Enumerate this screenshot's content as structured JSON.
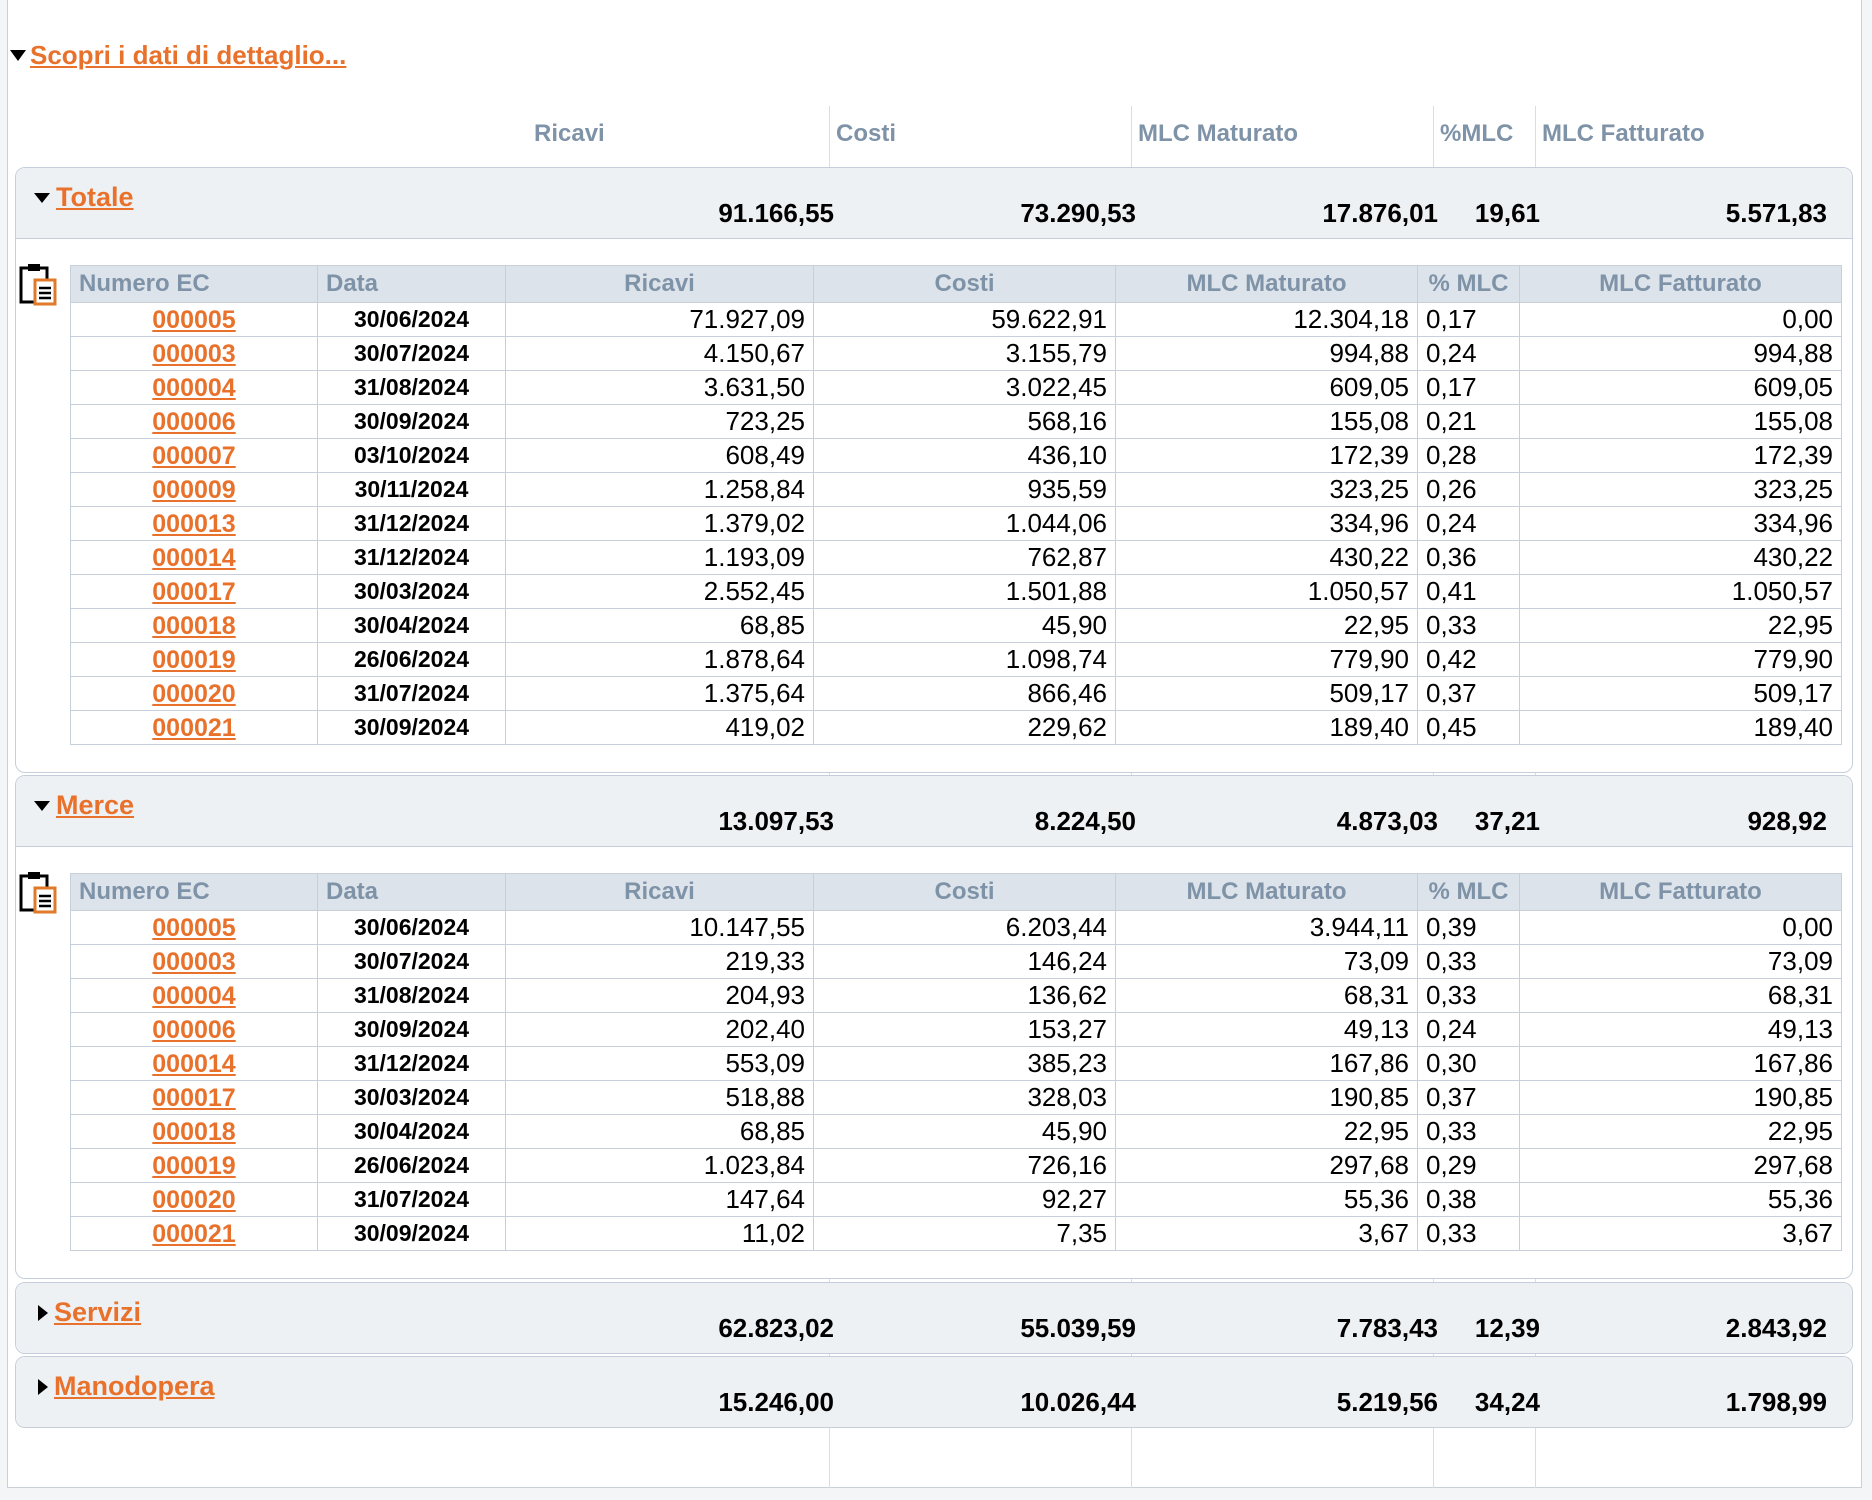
{
  "scopri_label": "Scopri i dati di dettaglio...",
  "columns": {
    "ricavi": "Ricavi",
    "costi": "Costi",
    "mlc_maturato": "MLC Maturato",
    "pct_mlc": "%MLC",
    "mlc_fatturato": "MLC Fatturato"
  },
  "detail_columns": {
    "numero_ec": "Numero EC",
    "data": "Data",
    "ricavi": "Ricavi",
    "costi": "Costi",
    "mlc_maturato": "MLC Maturato",
    "pct_mlc": "% MLC",
    "mlc_fatturato": "MLC Fatturato"
  },
  "sections": {
    "totale": {
      "title": "Totale",
      "expanded": true,
      "ricavi": "91.166,55",
      "costi": "73.290,53",
      "mlc_maturato": "17.876,01",
      "pct_mlc": "19,61",
      "mlc_fatturato": "5.571,83",
      "rows": [
        {
          "ec": "000005",
          "data": "30/06/2024",
          "ricavi": "71.927,09",
          "costi": "59.622,91",
          "mlc_maturato": "12.304,18",
          "pct": "0,17",
          "mlc_fatturato": "0,00"
        },
        {
          "ec": "000003",
          "data": "30/07/2024",
          "ricavi": "4.150,67",
          "costi": "3.155,79",
          "mlc_maturato": "994,88",
          "pct": "0,24",
          "mlc_fatturato": "994,88"
        },
        {
          "ec": "000004",
          "data": "31/08/2024",
          "ricavi": "3.631,50",
          "costi": "3.022,45",
          "mlc_maturato": "609,05",
          "pct": "0,17",
          "mlc_fatturato": "609,05"
        },
        {
          "ec": "000006",
          "data": "30/09/2024",
          "ricavi": "723,25",
          "costi": "568,16",
          "mlc_maturato": "155,08",
          "pct": "0,21",
          "mlc_fatturato": "155,08"
        },
        {
          "ec": "000007",
          "data": "03/10/2024",
          "ricavi": "608,49",
          "costi": "436,10",
          "mlc_maturato": "172,39",
          "pct": "0,28",
          "mlc_fatturato": "172,39"
        },
        {
          "ec": "000009",
          "data": "30/11/2024",
          "ricavi": "1.258,84",
          "costi": "935,59",
          "mlc_maturato": "323,25",
          "pct": "0,26",
          "mlc_fatturato": "323,25"
        },
        {
          "ec": "000013",
          "data": "31/12/2024",
          "ricavi": "1.379,02",
          "costi": "1.044,06",
          "mlc_maturato": "334,96",
          "pct": "0,24",
          "mlc_fatturato": "334,96"
        },
        {
          "ec": "000014",
          "data": "31/12/2024",
          "ricavi": "1.193,09",
          "costi": "762,87",
          "mlc_maturato": "430,22",
          "pct": "0,36",
          "mlc_fatturato": "430,22"
        },
        {
          "ec": "000017",
          "data": "30/03/2024",
          "ricavi": "2.552,45",
          "costi": "1.501,88",
          "mlc_maturato": "1.050,57",
          "pct": "0,41",
          "mlc_fatturato": "1.050,57"
        },
        {
          "ec": "000018",
          "data": "30/04/2024",
          "ricavi": "68,85",
          "costi": "45,90",
          "mlc_maturato": "22,95",
          "pct": "0,33",
          "mlc_fatturato": "22,95"
        },
        {
          "ec": "000019",
          "data": "26/06/2024",
          "ricavi": "1.878,64",
          "costi": "1.098,74",
          "mlc_maturato": "779,90",
          "pct": "0,42",
          "mlc_fatturato": "779,90"
        },
        {
          "ec": "000020",
          "data": "31/07/2024",
          "ricavi": "1.375,64",
          "costi": "866,46",
          "mlc_maturato": "509,17",
          "pct": "0,37",
          "mlc_fatturato": "509,17"
        },
        {
          "ec": "000021",
          "data": "30/09/2024",
          "ricavi": "419,02",
          "costi": "229,62",
          "mlc_maturato": "189,40",
          "pct": "0,45",
          "mlc_fatturato": "189,40"
        }
      ]
    },
    "merce": {
      "title": "Merce",
      "expanded": true,
      "ricavi": "13.097,53",
      "costi": "8.224,50",
      "mlc_maturato": "4.873,03",
      "pct_mlc": "37,21",
      "mlc_fatturato": "928,92",
      "rows": [
        {
          "ec": "000005",
          "data": "30/06/2024",
          "ricavi": "10.147,55",
          "costi": "6.203,44",
          "mlc_maturato": "3.944,11",
          "pct": "0,39",
          "mlc_fatturato": "0,00"
        },
        {
          "ec": "000003",
          "data": "30/07/2024",
          "ricavi": "219,33",
          "costi": "146,24",
          "mlc_maturato": "73,09",
          "pct": "0,33",
          "mlc_fatturato": "73,09"
        },
        {
          "ec": "000004",
          "data": "31/08/2024",
          "ricavi": "204,93",
          "costi": "136,62",
          "mlc_maturato": "68,31",
          "pct": "0,33",
          "mlc_fatturato": "68,31"
        },
        {
          "ec": "000006",
          "data": "30/09/2024",
          "ricavi": "202,40",
          "costi": "153,27",
          "mlc_maturato": "49,13",
          "pct": "0,24",
          "mlc_fatturato": "49,13"
        },
        {
          "ec": "000014",
          "data": "31/12/2024",
          "ricavi": "553,09",
          "costi": "385,23",
          "mlc_maturato": "167,86",
          "pct": "0,30",
          "mlc_fatturato": "167,86"
        },
        {
          "ec": "000017",
          "data": "30/03/2024",
          "ricavi": "518,88",
          "costi": "328,03",
          "mlc_maturato": "190,85",
          "pct": "0,37",
          "mlc_fatturato": "190,85"
        },
        {
          "ec": "000018",
          "data": "30/04/2024",
          "ricavi": "68,85",
          "costi": "45,90",
          "mlc_maturato": "22,95",
          "pct": "0,33",
          "mlc_fatturato": "22,95"
        },
        {
          "ec": "000019",
          "data": "26/06/2024",
          "ricavi": "1.023,84",
          "costi": "726,16",
          "mlc_maturato": "297,68",
          "pct": "0,29",
          "mlc_fatturato": "297,68"
        },
        {
          "ec": "000020",
          "data": "31/07/2024",
          "ricavi": "147,64",
          "costi": "92,27",
          "mlc_maturato": "55,36",
          "pct": "0,38",
          "mlc_fatturato": "55,36"
        },
        {
          "ec": "000021",
          "data": "30/09/2024",
          "ricavi": "11,02",
          "costi": "7,35",
          "mlc_maturato": "3,67",
          "pct": "0,33",
          "mlc_fatturato": "3,67"
        }
      ]
    },
    "servizi": {
      "title": "Servizi",
      "expanded": false,
      "ricavi": "62.823,02",
      "costi": "55.039,59",
      "mlc_maturato": "7.783,43",
      "pct_mlc": "12,39",
      "mlc_fatturato": "2.843,92"
    },
    "manodopera": {
      "title": "Manodopera",
      "expanded": false,
      "ricavi": "15.246,00",
      "costi": "10.026,44",
      "mlc_maturato": "5.219,56",
      "pct_mlc": "34,24",
      "mlc_fatturato": "1.798,99"
    }
  },
  "icons": {
    "expanded": "triangle-down-icon",
    "collapsed": "triangle-right-icon",
    "export": "clipboard-icon"
  },
  "colors": {
    "link": "#e8722c",
    "header_text": "#7f93a8",
    "section_bg": "#eef1f4",
    "table_header_bg": "#dde3ea"
  }
}
